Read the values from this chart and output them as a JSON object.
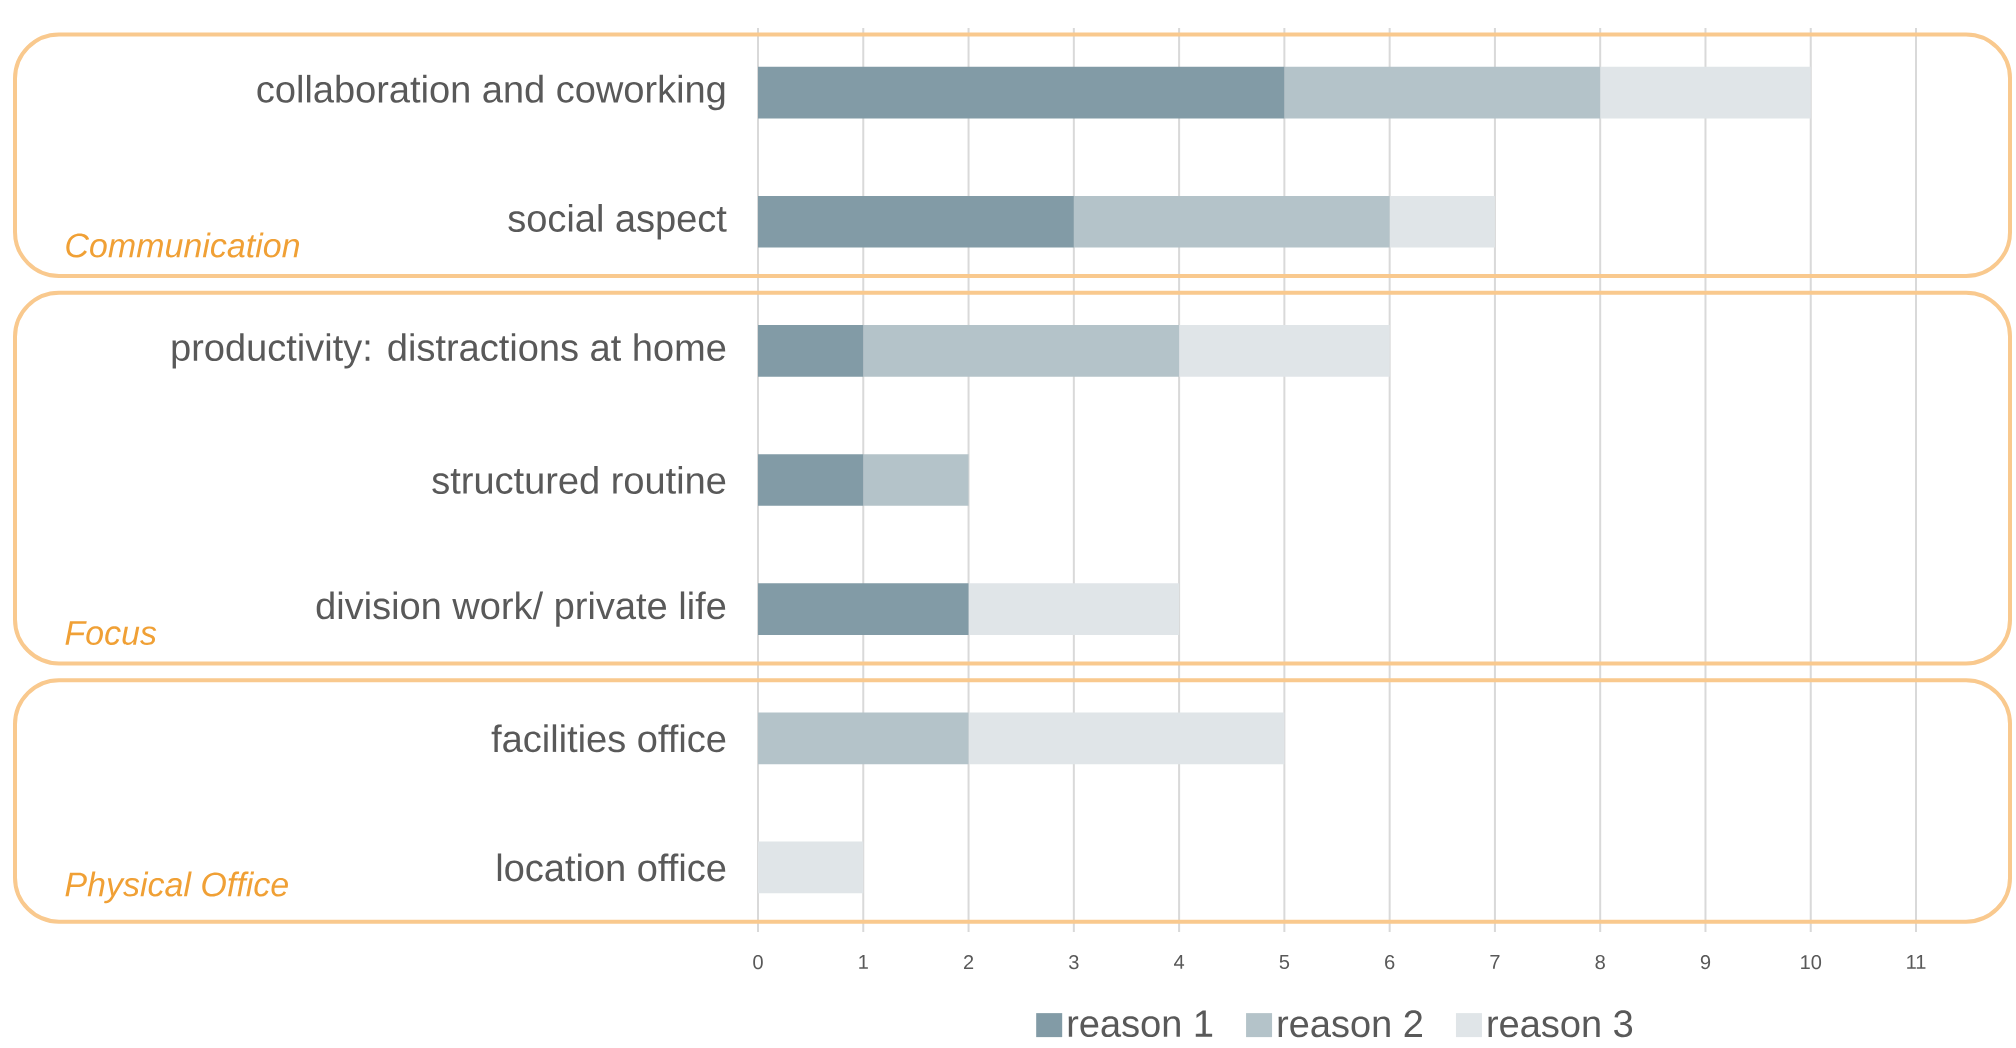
{
  "chart_data": {
    "type": "bar",
    "orientation": "horizontal",
    "stacked": true,
    "categories": [
      "collaboration and coworking",
      "social aspect",
      "productivity: distractions at home",
      "structured routine",
      "division work/ private life",
      "facilities office",
      "location office"
    ],
    "series": [
      {
        "name": "reason 1",
        "color": "#829ba6",
        "values": [
          5,
          3,
          1,
          1,
          2,
          0,
          0
        ]
      },
      {
        "name": "reason 2",
        "color": "#b4c3c9",
        "values": [
          3,
          3,
          3,
          1,
          0,
          2,
          0
        ]
      },
      {
        "name": "reason 3",
        "color": "#e0e5e8",
        "values": [
          2,
          1,
          2,
          0,
          2,
          3,
          1
        ]
      }
    ],
    "xlim": [
      0,
      11
    ],
    "xticks": [
      0,
      1,
      2,
      3,
      4,
      5,
      6,
      7,
      8,
      9,
      10,
      11
    ],
    "grid": "x",
    "legend": "bottom",
    "annotations": [
      "Communication",
      "Focus",
      "Physical Office"
    ]
  }
}
